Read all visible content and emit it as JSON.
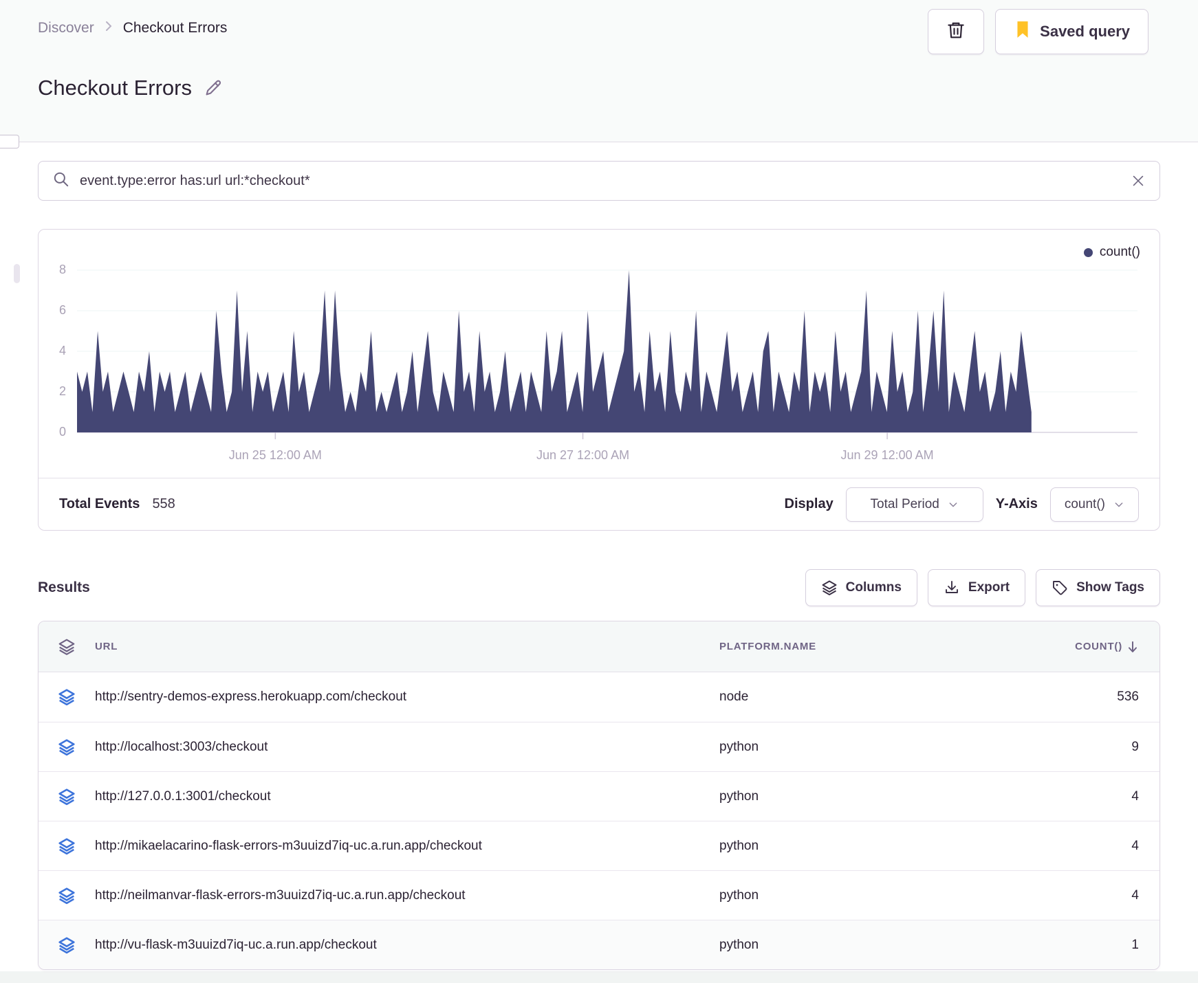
{
  "breadcrumb": {
    "parent": "Discover",
    "current": "Checkout Errors"
  },
  "header": {
    "title": "Checkout Errors",
    "saved_query_label": "Saved query"
  },
  "search": {
    "query": "event.type:error has:url url:*checkout*"
  },
  "summary": {
    "total_events_label": "Total Events",
    "total_events_value": "558",
    "display_label": "Display",
    "display_value": "Total Period",
    "yaxis_label": "Y-Axis",
    "yaxis_value": "count()"
  },
  "results": {
    "heading": "Results",
    "columns_label": "Columns",
    "export_label": "Export",
    "show_tags_label": "Show Tags"
  },
  "table": {
    "headers": {
      "url": "URL",
      "platform": "PLATFORM.NAME",
      "count": "COUNT()"
    },
    "sort": "count() descending",
    "rows": [
      {
        "url": "http://sentry-demos-express.herokuapp.com/checkout",
        "platform": "node",
        "count": "536"
      },
      {
        "url": "http://localhost:3003/checkout",
        "platform": "python",
        "count": "9"
      },
      {
        "url": "http://127.0.0.1:3001/checkout",
        "platform": "python",
        "count": "4"
      },
      {
        "url": "http://mikaelacarino-flask-errors-m3uuizd7iq-uc.a.run.app/checkout",
        "platform": "python",
        "count": "4"
      },
      {
        "url": "http://neilmanvar-flask-errors-m3uuizd7iq-uc.a.run.app/checkout",
        "platform": "python",
        "count": "4"
      },
      {
        "url": "http://vu-flask-m3uuizd7iq-uc.a.run.app/checkout",
        "platform": "python",
        "count": "1"
      }
    ]
  },
  "colors": {
    "chart_area": "#444674",
    "row_icon_blue": "#3D74DB",
    "header_icon_gray": "#6F6485",
    "bookmark_yellow": "#FFC227"
  },
  "chart_data": {
    "type": "area",
    "title": "Checkout Errors event volume",
    "ylabel": "count()",
    "ylim": [
      0,
      8
    ],
    "yticks": [
      0,
      2,
      4,
      6,
      8
    ],
    "xticks": [
      {
        "label": "Jun 25 12:00 AM",
        "pos": 0.187
      },
      {
        "label": "Jun 27 12:00 AM",
        "pos": 0.477
      },
      {
        "label": "Jun 29 12:00 AM",
        "pos": 0.764
      }
    ],
    "grid": true,
    "legend_position": "top-right",
    "data_extent": 0.9,
    "series": [
      {
        "name": "count()",
        "color": "#444674",
        "values": [
          3,
          2,
          3,
          1,
          5,
          2,
          3,
          1,
          2,
          3,
          2,
          1,
          3,
          2,
          4,
          1,
          3,
          2,
          3,
          1,
          2,
          3,
          1,
          2,
          3,
          2,
          1,
          6,
          3,
          1,
          2,
          7,
          2,
          5,
          1,
          3,
          2,
          3,
          1,
          2,
          3,
          1,
          5,
          2,
          3,
          1,
          2,
          3,
          7,
          2,
          7,
          3,
          1,
          2,
          1,
          3,
          2,
          5,
          1,
          2,
          1,
          2,
          3,
          1,
          2,
          4,
          1,
          3,
          5,
          2,
          1,
          3,
          2,
          1,
          6,
          2,
          3,
          1,
          5,
          2,
          3,
          1,
          2,
          4,
          1,
          2,
          3,
          1,
          3,
          2,
          1,
          5,
          2,
          3,
          5,
          1,
          2,
          3,
          1,
          6,
          2,
          3,
          4,
          1,
          2,
          3,
          4,
          8,
          2,
          3,
          1,
          5,
          2,
          3,
          1,
          5,
          2,
          1,
          3,
          2,
          6,
          1,
          3,
          2,
          1,
          3,
          5,
          2,
          3,
          1,
          2,
          3,
          1,
          4,
          5,
          1,
          3,
          2,
          1,
          3,
          2,
          6,
          1,
          3,
          2,
          3,
          1,
          5,
          2,
          3,
          1,
          2,
          3,
          7,
          1,
          3,
          2,
          1,
          5,
          2,
          3,
          1,
          2,
          6,
          1,
          3,
          6,
          2,
          7,
          1,
          3,
          2,
          1,
          3,
          5,
          2,
          3,
          1,
          2,
          4,
          1,
          3,
          2,
          5,
          3,
          1
        ]
      }
    ]
  }
}
